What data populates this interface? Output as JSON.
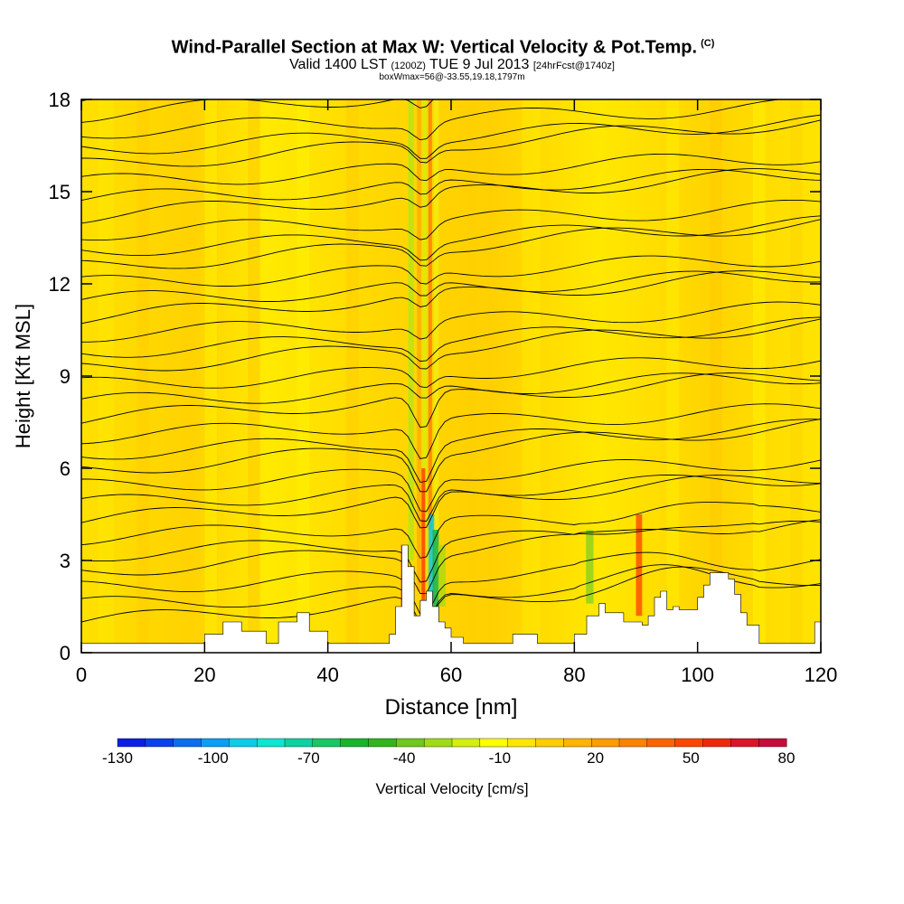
{
  "header": {
    "title": "Wind-Parallel Section at Max W: Vertical Velocity & Pot.Temp.",
    "copyright": "(C)",
    "subtitle_a": "Valid 1400 LST",
    "subtitle_b": "(1200Z)",
    "subtitle_c": "TUE 9 Jul 2013",
    "subtitle_d": "[24hrFcst@1740z]",
    "note": "boxWmax=56@-33.55,19.18,1797m"
  },
  "chart_data": {
    "type": "heatmap",
    "title": "Wind-Parallel Section at Max W: Vertical Velocity & Pot.Temp.",
    "xlabel": "Distance [nm]",
    "ylabel": "Height [Kft MSL]",
    "xlim": [
      0,
      120
    ],
    "ylim": [
      0,
      18
    ],
    "x_ticks": [
      "0",
      "20",
      "40",
      "60",
      "80",
      "100",
      "120"
    ],
    "y_ticks": [
      "0",
      "3",
      "6",
      "9",
      "12",
      "15",
      "18"
    ],
    "x_tick_values": [
      0,
      20,
      40,
      60,
      80,
      100,
      120
    ],
    "y_tick_values": [
      0,
      3,
      6,
      9,
      12,
      15,
      18
    ],
    "background_value_range": [
      -10,
      10
    ],
    "updraft_max_cm_s": 56,
    "updraft_location_nm": 56,
    "terrain_profile": {
      "x": [
        0,
        20,
        20,
        23,
        23,
        26,
        26,
        30,
        30,
        32,
        32,
        35,
        35,
        37,
        37,
        40,
        40,
        50,
        50,
        51,
        51,
        52,
        52,
        53,
        53,
        54,
        54,
        55,
        55,
        56,
        56,
        57,
        57,
        58,
        58,
        59,
        59,
        60,
        60,
        61,
        61,
        62,
        62,
        66,
        66,
        70,
        70,
        74,
        74,
        80,
        80,
        82,
        82,
        84,
        84,
        85,
        85,
        87,
        87,
        88,
        88,
        91,
        91,
        92,
        92,
        93,
        93,
        94,
        94,
        95,
        95,
        96,
        96,
        97,
        97,
        100,
        100,
        101,
        101,
        102,
        102,
        104,
        104,
        105,
        105,
        106,
        106,
        107,
        107,
        108,
        108,
        110,
        110,
        115,
        115,
        119,
        119,
        120
      ],
      "y": [
        0.3,
        0.3,
        0.6,
        0.6,
        1.0,
        1.0,
        0.7,
        0.7,
        0.3,
        0.3,
        1.0,
        1.0,
        1.3,
        1.3,
        0.7,
        0.7,
        0.3,
        0.3,
        0.6,
        0.6,
        1.5,
        1.5,
        3.5,
        3.5,
        2.8,
        2.8,
        1.2,
        1.2,
        1.7,
        1.7,
        2.0,
        2.0,
        1.5,
        1.5,
        1.0,
        1.0,
        0.8,
        0.8,
        0.5,
        0.5,
        0.5,
        0.5,
        0.3,
        0.3,
        0.3,
        0.3,
        0.6,
        0.6,
        0.3,
        0.3,
        0.6,
        0.6,
        1.2,
        1.2,
        1.6,
        1.6,
        1.3,
        1.3,
        1.3,
        1.3,
        1.0,
        1.0,
        0.9,
        0.9,
        1.2,
        1.2,
        1.8,
        1.8,
        2.0,
        2.0,
        1.4,
        1.4,
        1.5,
        1.5,
        1.4,
        1.4,
        1.8,
        1.8,
        2.2,
        2.2,
        2.6,
        2.6,
        2.6,
        2.6,
        2.4,
        2.4,
        1.9,
        1.9,
        1.3,
        1.3,
        0.9,
        0.9,
        0.3,
        0.3,
        0.3,
        0.3,
        1.0,
        1.0
      ]
    },
    "colorbar": {
      "label": "Vertical Velocity [cm/s]",
      "tick_labels": [
        "-130",
        "-100",
        "-70",
        "-40",
        "-10",
        "20",
        "50",
        "80"
      ],
      "colors": [
        "#0b1fe8",
        "#0a40ee",
        "#0a6ef2",
        "#0a9ef5",
        "#0acde6",
        "#0ae6d2",
        "#0ad2a0",
        "#14c864",
        "#19b42a",
        "#32b41e",
        "#6ec81e",
        "#a0dc14",
        "#d2f00a",
        "#ffff00",
        "#ffe600",
        "#ffcd00",
        "#ffb400",
        "#ff9b00",
        "#ff8200",
        "#ff6400",
        "#ff4600",
        "#f0280a",
        "#dc1428",
        "#c80a3c"
      ]
    }
  }
}
